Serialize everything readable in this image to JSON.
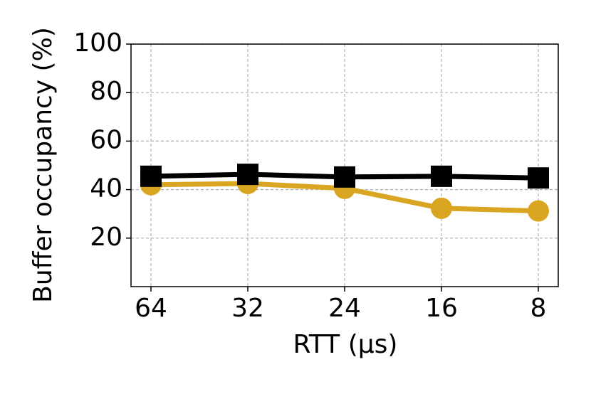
{
  "chart_data": {
    "type": "line",
    "xlabel": "RTT (μs)",
    "ylabel": "Buffer occupancy (%)",
    "categories": [
      "64",
      "32",
      "24",
      "16",
      "8"
    ],
    "series": [
      {
        "color": "#daa520",
        "marker": "circle",
        "values": [
          42,
          42.5,
          40.5,
          32.3,
          31.2
        ]
      },
      {
        "color": "#000000",
        "marker": "square",
        "values": [
          45.5,
          46.3,
          45.2,
          45.5,
          44.8
        ]
      }
    ],
    "ylim": [
      0,
      100
    ],
    "yticks": [
      20,
      40,
      60,
      80,
      100
    ],
    "grid": true
  }
}
